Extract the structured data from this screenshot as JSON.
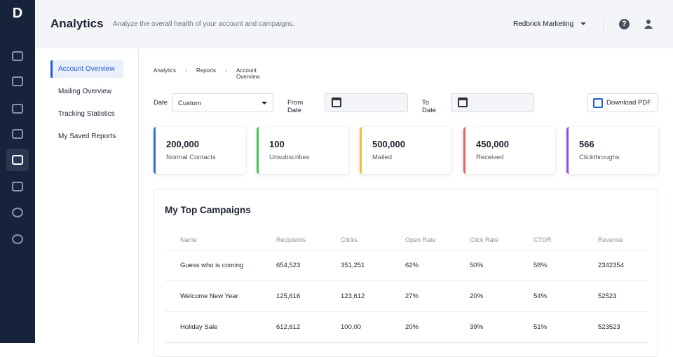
{
  "sidebar": {
    "logo": "D"
  },
  "header": {
    "title": "Analytics",
    "subtitle": "Analyze the overall health of your account and campaigns.",
    "account": "Redbrick Marketing"
  },
  "nav": [
    "Account Overview",
    "Mailing Overview",
    "Tracking Statistics",
    "My Saved Reports"
  ],
  "breadcrumb": [
    "Analytics",
    "Reports",
    "Account Overview"
  ],
  "filters": {
    "date_label": "Date",
    "date_value": "Custom",
    "from_label": "From Date",
    "to_label": "To Date",
    "download": "Download PDF"
  },
  "stats": [
    {
      "value": "200,000",
      "label": "Normal Contacts",
      "color": "#2f6fdf"
    },
    {
      "value": "100",
      "label": "Unsubscribes",
      "color": "#4cc25a"
    },
    {
      "value": "500,000",
      "label": "Mailed",
      "color": "#f2bd2c"
    },
    {
      "value": "450,000",
      "label": "Received",
      "color": "#ec5b5b"
    },
    {
      "value": "566",
      "label": "Clickthroughs",
      "color": "#8e4fe0"
    }
  ],
  "table": {
    "title": "My Top Campaigns",
    "columns": [
      "Name",
      "Recipients",
      "Clicks",
      "Open Rate",
      "Click Rate",
      "CTOR",
      "Revenue"
    ],
    "rows": [
      [
        "Guess who is coming",
        "654,523",
        "351,251",
        "62%",
        "50%",
        "58%",
        "2342354"
      ],
      [
        "Welcome New Year",
        "125,616",
        "123,612",
        "27%",
        "20%",
        "54%",
        "52523"
      ],
      [
        "Holiday Sale",
        "612,612",
        "100,00",
        "20%",
        "39%",
        "51%",
        "523523"
      ]
    ]
  }
}
